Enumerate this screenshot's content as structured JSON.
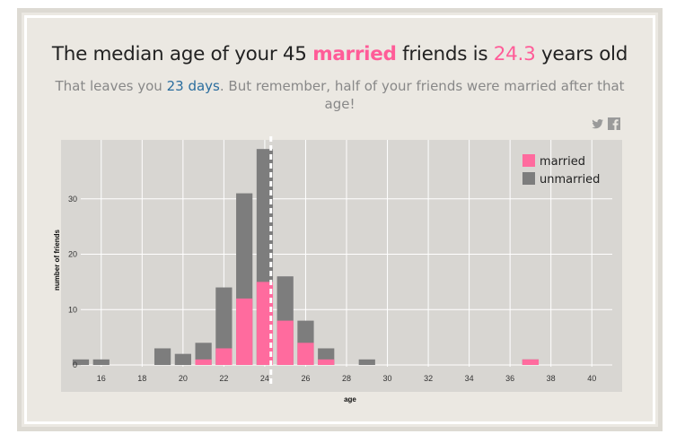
{
  "headline": {
    "prefix": "The median age of your",
    "count": "45",
    "married_word": "married",
    "middle": "friends is",
    "median": "24.3",
    "suffix": "years old"
  },
  "subheadline": {
    "prefix": "That leaves you",
    "days": "23 days",
    "suffix": ". But remember, half of your friends were married after that age!"
  },
  "share_icons": [
    "twitter-icon",
    "facebook-icon"
  ],
  "colors": {
    "married": "#ff6b9e",
    "unmarried": "#7d7d7d",
    "plot_bg": "#d8d6d2",
    "median_line": "#ffffff"
  },
  "chart_data": {
    "type": "bar",
    "stacked": true,
    "xlabel": "age",
    "ylabel": "number of friends",
    "xlim": [
      15,
      41
    ],
    "ylim": [
      0,
      40
    ],
    "x_ticks": [
      16,
      18,
      20,
      22,
      24,
      26,
      28,
      30,
      32,
      34,
      36,
      38,
      40
    ],
    "y_ticks": [
      0,
      10,
      20,
      30
    ],
    "median_age": 24.3,
    "legend_position": "top-right",
    "x": [
      15,
      16,
      19,
      20,
      21,
      22,
      23,
      24,
      25,
      26,
      27,
      29,
      37
    ],
    "series": [
      {
        "name": "married",
        "values": [
          0,
          0,
          0,
          0,
          1,
          3,
          12,
          15,
          8,
          4,
          1,
          0,
          1
        ]
      },
      {
        "name": "unmarried",
        "values": [
          1,
          1,
          3,
          2,
          3,
          11,
          19,
          24,
          8,
          4,
          2,
          1,
          0
        ]
      }
    ]
  }
}
